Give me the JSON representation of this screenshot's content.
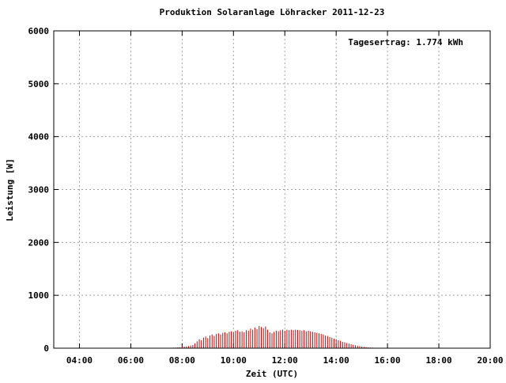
{
  "chart_data": {
    "type": "impulse",
    "title": "Produktion Solaranlage Löhracker 2011-12-23",
    "annotation": "Tagesertrag: 1.774 kWh",
    "x_label": "Zeit (UTC)",
    "y_label": "Leistung [W]",
    "color": "#cc0000",
    "grid": true,
    "xlim": [
      "03:00",
      "20:00"
    ],
    "xticks": [
      "04:00",
      "06:00",
      "08:00",
      "10:00",
      "12:00",
      "14:00",
      "16:00",
      "18:00",
      "20:00"
    ],
    "ylim": [
      0,
      6000
    ],
    "yticks": [
      0,
      1000,
      2000,
      3000,
      4000,
      5000,
      6000
    ],
    "x": [
      "07:30",
      "07:35",
      "07:40",
      "07:45",
      "07:50",
      "07:55",
      "08:00",
      "08:05",
      "08:10",
      "08:15",
      "08:20",
      "08:25",
      "08:30",
      "08:35",
      "08:40",
      "08:45",
      "08:50",
      "08:55",
      "09:00",
      "09:05",
      "09:10",
      "09:15",
      "09:20",
      "09:25",
      "09:30",
      "09:35",
      "09:40",
      "09:45",
      "09:50",
      "09:55",
      "10:00",
      "10:05",
      "10:10",
      "10:15",
      "10:20",
      "10:25",
      "10:30",
      "10:35",
      "10:40",
      "10:45",
      "10:50",
      "10:55",
      "11:00",
      "11:05",
      "11:10",
      "11:15",
      "11:20",
      "11:25",
      "11:30",
      "11:35",
      "11:40",
      "11:45",
      "11:50",
      "11:55",
      "12:00",
      "12:05",
      "12:10",
      "12:15",
      "12:20",
      "12:25",
      "12:30",
      "12:35",
      "12:40",
      "12:45",
      "12:50",
      "12:55",
      "13:00",
      "13:05",
      "13:10",
      "13:15",
      "13:20",
      "13:25",
      "13:30",
      "13:35",
      "13:40",
      "13:45",
      "13:50",
      "13:55",
      "14:00",
      "14:05",
      "14:10",
      "14:15",
      "14:20",
      "14:25",
      "14:30",
      "14:35",
      "14:40",
      "14:45",
      "14:50",
      "14:55",
      "15:00",
      "15:05",
      "15:10",
      "15:15",
      "15:20",
      "15:25",
      "15:30",
      "15:35",
      "15:40",
      "15:45"
    ],
    "values": [
      5,
      8,
      10,
      12,
      15,
      18,
      25,
      30,
      35,
      40,
      50,
      60,
      90,
      130,
      170,
      150,
      200,
      220,
      190,
      240,
      260,
      230,
      270,
      280,
      260,
      290,
      300,
      280,
      310,
      320,
      300,
      330,
      340,
      310,
      320,
      300,
      340,
      330,
      370,
      350,
      390,
      360,
      420,
      400,
      380,
      410,
      350,
      300,
      280,
      310,
      330,
      320,
      340,
      350,
      330,
      350,
      340,
      350,
      340,
      350,
      345,
      340,
      330,
      340,
      320,
      330,
      320,
      310,
      300,
      290,
      280,
      270,
      260,
      240,
      230,
      210,
      200,
      180,
      170,
      150,
      140,
      120,
      110,
      95,
      85,
      75,
      65,
      55,
      45,
      40,
      30,
      25,
      20,
      15,
      12,
      10,
      8,
      5,
      3,
      2
    ]
  }
}
